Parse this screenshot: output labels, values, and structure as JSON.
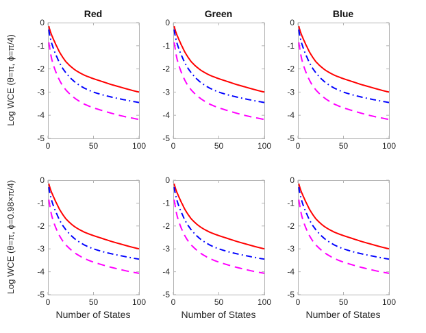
{
  "figure": {
    "background": "#ffffff",
    "axis_color": "#b2b2b2",
    "tick_label_color": "#262626",
    "title_color": "#111111"
  },
  "chart_data": {
    "type": "line",
    "grid": false,
    "legend": "none",
    "layout": "2 rows x 3 columns of identical-style subplots",
    "columns": [
      "Red",
      "Green",
      "Blue"
    ],
    "xlabel": "Number of States",
    "xlim": [
      0,
      100
    ],
    "ylim": [
      -5,
      0
    ],
    "xticks": [
      0,
      50,
      100
    ],
    "xticklabels": [
      "0",
      "50",
      "100"
    ],
    "yticks": [
      0,
      -1,
      -2,
      -3,
      -4,
      -5
    ],
    "yticklabels": [
      "0",
      "-1",
      "-2",
      "-3",
      "-4",
      "-5"
    ],
    "x": [
      1,
      2,
      3,
      5,
      7,
      10,
      15,
      20,
      30,
      40,
      50,
      60,
      80,
      100
    ],
    "rows": [
      {
        "ylabel": "Log WCE (θ=π, ϕ=π/4)",
        "series": [
          {
            "name": "red-solid",
            "color": "#ff0000",
            "style": "solid",
            "y": [
              -0.15,
              -0.3,
              -0.42,
              -0.62,
              -0.8,
              -1.05,
              -1.42,
              -1.7,
              -2.05,
              -2.27,
              -2.42,
              -2.55,
              -2.79,
              -3.0
            ]
          },
          {
            "name": "blue-dashdot",
            "color": "#0000ff",
            "style": "dashdot",
            "y": [
              -0.3,
              -0.55,
              -0.72,
              -1.0,
              -1.22,
              -1.5,
              -1.9,
              -2.18,
              -2.58,
              -2.83,
              -3.0,
              -3.12,
              -3.3,
              -3.45
            ]
          },
          {
            "name": "magenta-dashed",
            "color": "#ff00ff",
            "style": "dashed",
            "y": [
              -0.85,
              -1.1,
              -1.35,
              -1.7,
              -1.95,
              -2.25,
              -2.65,
              -2.92,
              -3.28,
              -3.52,
              -3.68,
              -3.8,
              -4.02,
              -4.18
            ]
          }
        ]
      },
      {
        "ylabel": "Log WCE (θ=π, ϕ=0.98×π/4)",
        "series": [
          {
            "name": "red-solid",
            "color": "#ff0000",
            "style": "solid",
            "y": [
              -0.15,
              -0.3,
              -0.42,
              -0.62,
              -0.8,
              -1.05,
              -1.42,
              -1.7,
              -2.05,
              -2.27,
              -2.42,
              -2.55,
              -2.79,
              -3.0
            ]
          },
          {
            "name": "blue-dashdot",
            "color": "#0000ff",
            "style": "dashdot",
            "y": [
              -0.3,
              -0.55,
              -0.72,
              -1.0,
              -1.22,
              -1.5,
              -1.9,
              -2.18,
              -2.58,
              -2.83,
              -3.0,
              -3.12,
              -3.3,
              -3.45
            ]
          },
          {
            "name": "magenta-dashed",
            "color": "#ff00ff",
            "style": "dashed",
            "y": [
              -0.85,
              -1.1,
              -1.33,
              -1.67,
              -1.91,
              -2.2,
              -2.58,
              -2.84,
              -3.19,
              -3.42,
              -3.58,
              -3.7,
              -3.91,
              -4.07
            ]
          }
        ]
      }
    ]
  }
}
